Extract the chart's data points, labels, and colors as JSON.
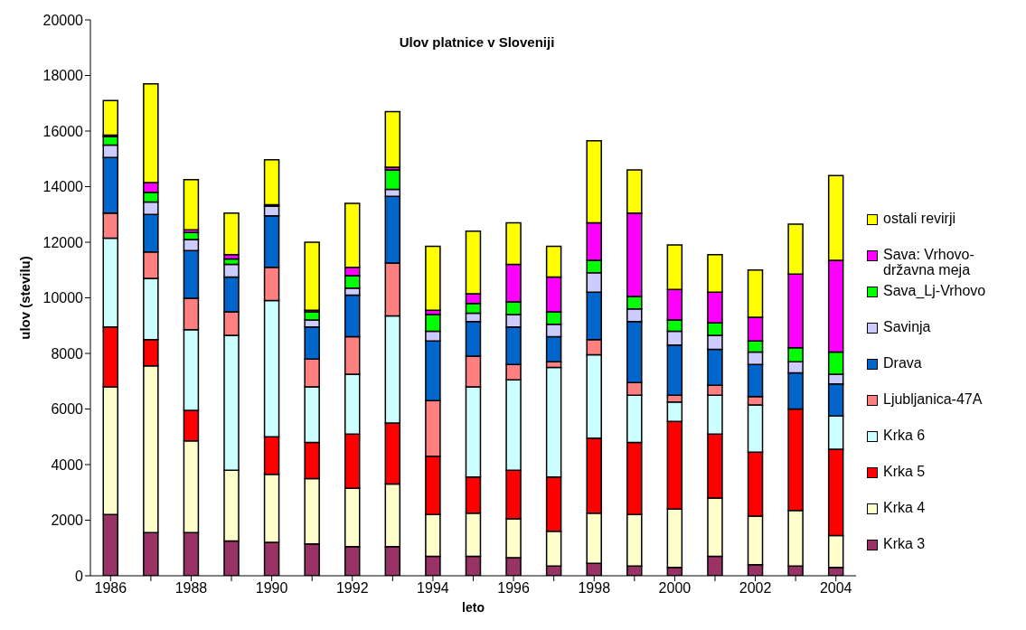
{
  "chart_data": {
    "type": "bar",
    "title": "Ulov platnice v Sloveniji",
    "xlabel": "leto",
    "ylabel": "ulov (stevilu)",
    "stacked": true,
    "legend": "right",
    "categories": [
      "1986",
      null,
      "1988",
      null,
      "1990",
      null,
      "1992",
      null,
      "1994",
      null,
      "1996",
      null,
      "1998",
      null,
      "2000",
      null,
      "2002",
      null,
      "2004"
    ],
    "ylim": [
      0,
      20000
    ],
    "yticks": [
      0,
      2000,
      4000,
      6000,
      8000,
      10000,
      12000,
      14000,
      16000,
      18000,
      20000
    ],
    "series": [
      {
        "name": "Krka 3",
        "color": "#993366",
        "values": [
          2200,
          1550,
          1550,
          1250,
          1200,
          1150,
          1050,
          1050,
          700,
          700,
          650,
          350,
          450,
          350,
          300,
          700,
          400,
          350,
          300
        ]
      },
      {
        "name": "Krka 4",
        "color": "#ffffcc",
        "values": [
          4600,
          6000,
          3300,
          2550,
          2450,
          2350,
          2100,
          2250,
          1500,
          1550,
          1400,
          1250,
          1800,
          1850,
          2100,
          2100,
          1750,
          2000,
          1150
        ]
      },
      {
        "name": "Krka 5",
        "color": "#ff0000",
        "values": [
          2150,
          950,
          1100,
          0,
          1350,
          1300,
          1950,
          2200,
          2100,
          1300,
          1750,
          1950,
          2700,
          2600,
          3150,
          2300,
          2300,
          3650,
          3100
        ]
      },
      {
        "name": "Krka 6",
        "color": "#ccffff",
        "values": [
          3200,
          2200,
          2900,
          4850,
          4900,
          2000,
          2150,
          3850,
          0,
          3250,
          3250,
          3950,
          3000,
          1700,
          700,
          1400,
          1700,
          0,
          1200
        ]
      },
      {
        "name": "Ljubljanica-47A",
        "color": "#ff8080",
        "values": [
          900,
          950,
          1130,
          850,
          1200,
          1000,
          1350,
          1900,
          2000,
          1100,
          550,
          200,
          550,
          450,
          250,
          350,
          300,
          null,
          0
        ]
      },
      {
        "name": "Drava",
        "color": "#0066cc",
        "values": [
          2000,
          1350,
          1720,
          1250,
          1850,
          1150,
          1500,
          2400,
          2150,
          1250,
          1350,
          900,
          1700,
          2200,
          1800,
          1300,
          1150,
          1300,
          1150
        ]
      },
      {
        "name": "Savinja",
        "color": "#ccccff",
        "values": [
          450,
          450,
          400,
          450,
          350,
          250,
          250,
          250,
          350,
          300,
          450,
          450,
          700,
          450,
          500,
          500,
          450,
          400,
          350
        ]
      },
      {
        "name": "Sava_Lj-Vrhovo",
        "color": "#00ff00",
        "values": [
          300,
          350,
          250,
          200,
          50,
          300,
          450,
          700,
          600,
          350,
          450,
          450,
          450,
          450,
          400,
          450,
          400,
          500,
          800
        ]
      },
      {
        "name": "Sava: Vrhovo-državna meja",
        "color": "#ff00ff",
        "values": [
          50,
          350,
          100,
          150,
          null,
          50,
          300,
          100,
          150,
          350,
          1350,
          1250,
          1350,
          3000,
          1100,
          1100,
          850,
          2650,
          3300
        ]
      },
      {
        "name": "ostali revirji",
        "color": "#ffff00",
        "values": [
          1250,
          3550,
          1800,
          1500,
          1620,
          2450,
          2300,
          2000,
          2300,
          2250,
          1500,
          1100,
          2950,
          1550,
          1600,
          1350,
          1700,
          1800,
          3050
        ]
      }
    ]
  }
}
